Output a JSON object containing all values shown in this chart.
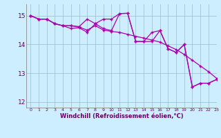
{
  "background_color": "#cceeff",
  "line_color": "#aa00aa",
  "grid_color": "#99bbcc",
  "xlabel": "Windchill (Refroidissement éolien,°C)",
  "xlim": [
    -0.5,
    23
  ],
  "ylim": [
    11.8,
    15.4
  ],
  "yticks": [
    12,
    13,
    14,
    15
  ],
  "xticks": [
    0,
    1,
    2,
    3,
    4,
    5,
    6,
    7,
    8,
    9,
    10,
    11,
    12,
    13,
    14,
    15,
    16,
    17,
    18,
    19,
    20,
    21,
    22,
    23
  ],
  "series1_x": [
    0,
    1,
    2,
    3,
    4,
    5,
    6,
    7,
    8,
    9,
    10,
    11,
    12,
    13,
    14,
    15,
    16,
    17,
    18,
    19,
    20,
    21,
    22,
    23
  ],
  "series1_y": [
    15.0,
    14.88,
    14.88,
    14.72,
    14.65,
    14.65,
    14.6,
    14.5,
    14.65,
    14.5,
    14.45,
    14.42,
    14.35,
    14.28,
    14.22,
    14.15,
    14.08,
    13.95,
    13.82,
    13.65,
    13.45,
    13.25,
    13.05,
    12.82
  ],
  "series2_x": [
    0,
    1,
    2,
    3,
    4,
    5,
    6,
    7,
    8,
    9,
    10,
    11,
    12,
    13,
    14,
    15,
    16,
    17,
    18,
    19,
    20,
    21,
    22,
    23
  ],
  "series2_y": [
    15.0,
    14.88,
    14.88,
    14.72,
    14.65,
    14.55,
    14.58,
    14.42,
    14.72,
    14.55,
    14.48,
    15.07,
    15.08,
    14.1,
    14.1,
    14.42,
    14.48,
    13.85,
    13.72,
    14.0,
    12.52,
    12.65,
    12.65,
    12.78
  ],
  "series3_x": [
    0,
    1,
    2,
    3,
    4,
    5,
    6,
    7,
    8,
    9,
    10,
    11,
    12,
    13,
    14,
    15,
    16,
    17,
    18,
    19,
    20,
    21,
    22,
    23
  ],
  "series3_y": [
    15.0,
    14.88,
    14.88,
    14.72,
    14.65,
    14.65,
    14.62,
    14.88,
    14.72,
    14.88,
    14.88,
    15.07,
    15.08,
    14.1,
    14.1,
    14.1,
    14.48,
    13.85,
    13.72,
    14.0,
    12.52,
    12.65,
    12.65,
    12.78
  ]
}
